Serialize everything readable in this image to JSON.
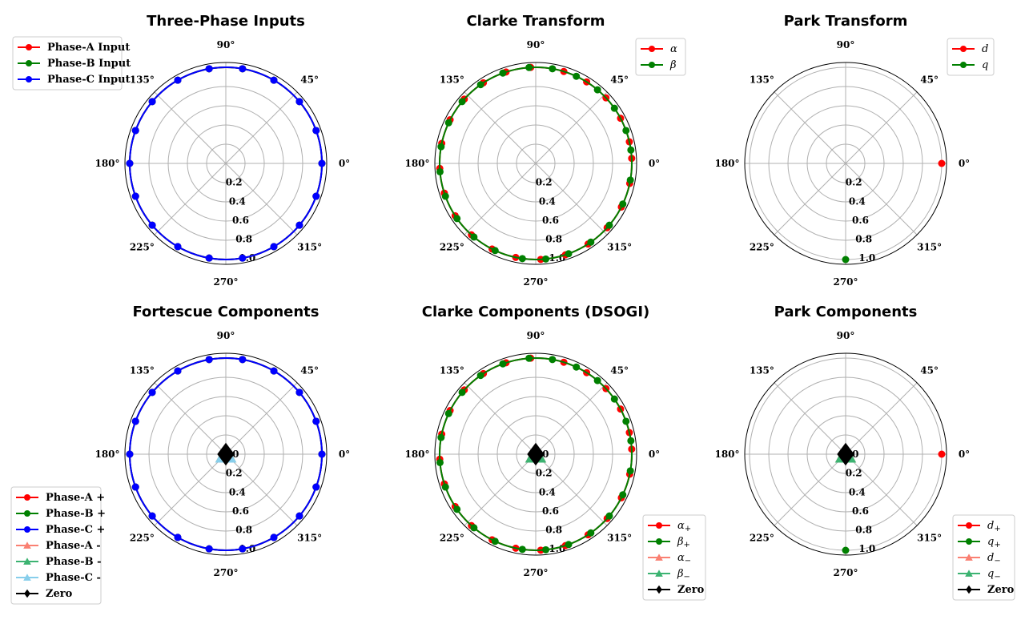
{
  "chart_data": [
    {
      "type": "polar-line",
      "title": "Three-Phase Inputs",
      "angle_ticks": [
        "0°",
        "45°",
        "90°",
        "135°",
        "180°",
        "225°",
        "270°",
        "315°"
      ],
      "radial_ticks": [
        "0.2",
        "0.4",
        "0.6",
        "0.8",
        "1.0"
      ],
      "rlim": [
        0,
        1.05
      ],
      "grid": true,
      "legend_position": "upper-left-outside",
      "series": [
        {
          "name": "Phase-A Input",
          "color": "#ff0000",
          "marker": "circle",
          "r": 1.0,
          "theta_deg": [
            0,
            20,
            40,
            60,
            80,
            100,
            120,
            140,
            160,
            180,
            200,
            220,
            240,
            260,
            280,
            300,
            320,
            340
          ]
        },
        {
          "name": "Phase-B Input",
          "color": "#008000",
          "marker": "circle",
          "r": 1.0,
          "theta_deg": [
            0,
            20,
            40,
            60,
            80,
            100,
            120,
            140,
            160,
            180,
            200,
            220,
            240,
            260,
            280,
            300,
            320,
            340
          ]
        },
        {
          "name": "Phase-C Input",
          "color": "#0000ff",
          "marker": "circle",
          "r": 1.0,
          "theta_deg": [
            0,
            20,
            40,
            60,
            80,
            100,
            120,
            140,
            160,
            180,
            200,
            220,
            240,
            260,
            280,
            300,
            320,
            340
          ]
        }
      ]
    },
    {
      "type": "polar-line",
      "title": "Clarke Transform",
      "angle_ticks": [
        "0°",
        "45°",
        "90°",
        "135°",
        "180°",
        "225°",
        "270°",
        "315°"
      ],
      "radial_ticks": [
        "0.2",
        "0.4",
        "0.6",
        "0.8",
        "1.0"
      ],
      "rlim": [
        0,
        1.05
      ],
      "grid": true,
      "legend_position": "upper-right",
      "series": [
        {
          "name": "α",
          "color": "#ff0000",
          "marker": "circle",
          "r": 1.0,
          "theta_deg": [
            3,
            13,
            28,
            43,
            58,
            73,
            93,
            108,
            123,
            138,
            153,
            168,
            183,
            198,
            213,
            228,
            243,
            258,
            273,
            288,
            303,
            318,
            333,
            348
          ]
        },
        {
          "name": "β",
          "color": "#008000",
          "marker": "circle",
          "r": 1.0,
          "theta_deg": [
            8,
            20,
            35,
            50,
            65,
            80,
            94,
            110,
            125,
            140,
            155,
            170,
            185,
            200,
            215,
            230,
            245,
            262,
            276,
            290,
            305,
            320,
            335,
            350
          ]
        }
      ]
    },
    {
      "type": "polar-line",
      "title": "Park Transform",
      "angle_ticks": [
        "0°",
        "45°",
        "90°",
        "135°",
        "180°",
        "225°",
        "270°",
        "315°"
      ],
      "radial_ticks": [
        "0.2",
        "0.4",
        "0.6",
        "0.8",
        "1.0"
      ],
      "rlim": [
        0,
        1.05
      ],
      "grid": true,
      "legend_position": "upper-right",
      "series": [
        {
          "name": "d",
          "color": "#ff0000",
          "marker": "circle",
          "r": 1.0,
          "theta_deg": [
            0
          ]
        },
        {
          "name": "q",
          "color": "#008000",
          "marker": "circle",
          "r": 1.0,
          "theta_deg": [
            270
          ]
        }
      ]
    },
    {
      "type": "polar-line",
      "title": "Fortescue Components",
      "angle_ticks": [
        "0°",
        "45°",
        "90°",
        "135°",
        "180°",
        "225°",
        "270°",
        "315°"
      ],
      "radial_ticks": [
        "0.0",
        "0.2",
        "0.4",
        "0.6",
        "0.8",
        "1.0"
      ],
      "rlim": [
        0,
        1.05
      ],
      "grid": true,
      "legend_position": "lower-left-outside",
      "series": [
        {
          "name": "Phase-A +",
          "color": "#ff0000",
          "marker": "circle",
          "r": 1.0,
          "theta_deg": [
            0,
            20,
            40,
            60,
            80,
            100,
            120,
            140,
            160,
            180,
            200,
            220,
            240,
            260,
            280,
            300,
            320,
            340
          ]
        },
        {
          "name": "Phase-B +",
          "color": "#008000",
          "marker": "circle",
          "r": 1.0,
          "theta_deg": [
            0,
            20,
            40,
            60,
            80,
            100,
            120,
            140,
            160,
            180,
            200,
            220,
            240,
            260,
            280,
            300,
            320,
            340
          ]
        },
        {
          "name": "Phase-C +",
          "color": "#0000ff",
          "marker": "circle",
          "r": 1.0,
          "theta_deg": [
            0,
            20,
            40,
            60,
            80,
            100,
            120,
            140,
            160,
            180,
            200,
            220,
            240,
            260,
            280,
            300,
            320,
            340
          ]
        },
        {
          "name": "Phase-A -",
          "color": "#fa8072",
          "marker": "triangle",
          "r": 0.0,
          "theta_deg": [
            0
          ]
        },
        {
          "name": "Phase-B -",
          "color": "#3cb371",
          "marker": "triangle",
          "r": 0.0,
          "theta_deg": [
            0
          ]
        },
        {
          "name": "Phase-C -",
          "color": "#87ceeb",
          "marker": "triangle",
          "r": 0.0,
          "theta_deg": [
            0
          ]
        },
        {
          "name": "Zero",
          "color": "#000000",
          "marker": "diamond",
          "r": 0.0,
          "theta_deg": [
            0
          ]
        }
      ]
    },
    {
      "type": "polar-line",
      "title": "Clarke Components (DSOGI)",
      "angle_ticks": [
        "0°",
        "45°",
        "90°",
        "135°",
        "180°",
        "225°",
        "270°",
        "315°"
      ],
      "radial_ticks": [
        "0.0",
        "0.2",
        "0.4",
        "0.6",
        "0.8",
        "1.0"
      ],
      "rlim": [
        0,
        1.05
      ],
      "grid": true,
      "legend_position": "lower-right-outside",
      "series": [
        {
          "name": "α₊",
          "color": "#ff0000",
          "marker": "circle",
          "r": 1.0,
          "theta_deg": [
            3,
            13,
            28,
            43,
            58,
            73,
            93,
            108,
            123,
            138,
            153,
            168,
            183,
            198,
            213,
            228,
            243,
            258,
            273,
            288,
            303,
            318,
            333,
            348
          ]
        },
        {
          "name": "β₊",
          "color": "#008000",
          "marker": "circle",
          "r": 1.0,
          "theta_deg": [
            8,
            20,
            35,
            50,
            65,
            80,
            94,
            110,
            125,
            140,
            155,
            170,
            185,
            200,
            215,
            230,
            245,
            262,
            276,
            290,
            305,
            320,
            335,
            350
          ]
        },
        {
          "name": "α₋",
          "color": "#fa8072",
          "marker": "triangle",
          "r": 0.0,
          "theta_deg": [
            0
          ]
        },
        {
          "name": "β₋",
          "color": "#3cb371",
          "marker": "triangle",
          "r": 0.0,
          "theta_deg": [
            0
          ]
        },
        {
          "name": "Zero",
          "color": "#000000",
          "marker": "diamond",
          "r": 0.0,
          "theta_deg": [
            0
          ]
        }
      ]
    },
    {
      "type": "polar-line",
      "title": "Park Components",
      "angle_ticks": [
        "0°",
        "45°",
        "90°",
        "135°",
        "180°",
        "225°",
        "270°",
        "315°"
      ],
      "radial_ticks": [
        "0.0",
        "0.2",
        "0.4",
        "0.6",
        "0.8",
        "1.0"
      ],
      "rlim": [
        0,
        1.05
      ],
      "grid": true,
      "legend_position": "lower-right-outside",
      "series": [
        {
          "name": "d₊",
          "color": "#ff0000",
          "marker": "circle",
          "r": 1.0,
          "theta_deg": [
            0
          ]
        },
        {
          "name": "q₊",
          "color": "#008000",
          "marker": "circle",
          "r": 1.0,
          "theta_deg": [
            270
          ]
        },
        {
          "name": "d₋",
          "color": "#fa8072",
          "marker": "triangle",
          "r": 0.0,
          "theta_deg": [
            0
          ]
        },
        {
          "name": "q₋",
          "color": "#3cb371",
          "marker": "triangle",
          "r": 0.0,
          "theta_deg": [
            0
          ]
        },
        {
          "name": "Zero",
          "color": "#000000",
          "marker": "diamond",
          "r": 0.0,
          "theta_deg": [
            0
          ]
        }
      ]
    }
  ]
}
